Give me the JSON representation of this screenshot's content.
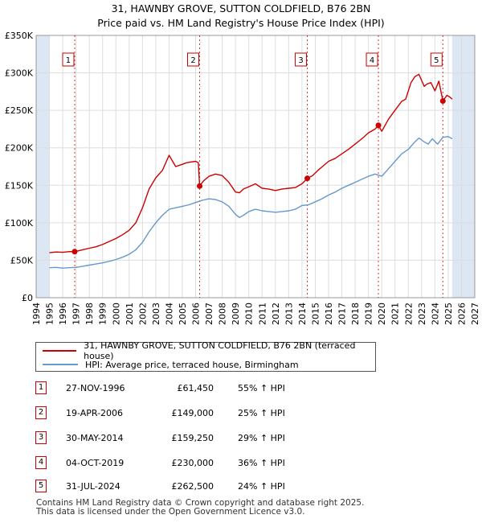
{
  "title_line1": "31, HAWNBY GROVE, SUTTON COLDFIELD, B76 2BN",
  "title_line2": "Price paid vs. HM Land Registry's House Price Index (HPI)",
  "legend": {
    "property": "31, HAWNBY GROVE, SUTTON COLDFIELD, B76 2BN (terraced house)",
    "hpi": "HPI: Average price, terraced house, Birmingham"
  },
  "sales": [
    {
      "num": "1",
      "date": "27-NOV-1996",
      "price": "£61,450",
      "hpi": "55% ↑ HPI"
    },
    {
      "num": "2",
      "date": "19-APR-2006",
      "price": "£149,000",
      "hpi": "25% ↑ HPI"
    },
    {
      "num": "3",
      "date": "30-MAY-2014",
      "price": "£159,250",
      "hpi": "29% ↑ HPI"
    },
    {
      "num": "4",
      "date": "04-OCT-2019",
      "price": "£230,000",
      "hpi": "36% ↑ HPI"
    },
    {
      "num": "5",
      "date": "31-JUL-2024",
      "price": "£262,500",
      "hpi": "24% ↑ HPI"
    }
  ],
  "footer_line1": "Contains HM Land Registry data © Crown copyright and database right 2025.",
  "footer_line2": "This data is licensed under the Open Government Licence v3.0.",
  "colors": {
    "property": "#cc0000",
    "hpi": "#6699cc",
    "shade": "#dde6f3",
    "grid": "#dddddd"
  },
  "chart_data": {
    "type": "line",
    "xlabel": "",
    "ylabel": "",
    "xlim": [
      1994,
      2027
    ],
    "ylim": [
      0,
      350000
    ],
    "x_ticks": [
      "1994",
      "1995",
      "1996",
      "1997",
      "1998",
      "1999",
      "2000",
      "2001",
      "2002",
      "2003",
      "2004",
      "2005",
      "2006",
      "2007",
      "2008",
      "2009",
      "2010",
      "2011",
      "2012",
      "2013",
      "2014",
      "2015",
      "2016",
      "2017",
      "2018",
      "2019",
      "2020",
      "2021",
      "2022",
      "2023",
      "2024",
      "2025",
      "2026",
      "2027"
    ],
    "y_ticks": [
      {
        "value": 0,
        "label": "£0"
      },
      {
        "value": 50000,
        "label": "£50K"
      },
      {
        "value": 100000,
        "label": "£100K"
      },
      {
        "value": 150000,
        "label": "£150K"
      },
      {
        "value": 200000,
        "label": "£200K"
      },
      {
        "value": 250000,
        "label": "£250K"
      },
      {
        "value": 300000,
        "label": "£300K"
      },
      {
        "value": 350000,
        "label": "£350K"
      }
    ],
    "shaded_ranges": [
      [
        1994,
        1995
      ],
      [
        2025.3,
        2027
      ]
    ],
    "sale_markers": [
      {
        "label": "1",
        "x": 1996.9,
        "y": 61450
      },
      {
        "label": "2",
        "x": 2006.3,
        "y": 149000
      },
      {
        "label": "3",
        "x": 2014.4,
        "y": 159250
      },
      {
        "label": "4",
        "x": 2019.75,
        "y": 230000
      },
      {
        "label": "5",
        "x": 2024.6,
        "y": 262500
      }
    ],
    "series": [
      {
        "name": "31, HAWNBY GROVE, SUTTON COLDFIELD, B76 2BN (terraced house)",
        "x": [
          1995,
          1995.5,
          1996,
          1996.5,
          1996.9,
          1997.5,
          1998,
          1998.5,
          1999,
          1999.5,
          2000,
          2000.5,
          2001,
          2001.5,
          2002,
          2002.5,
          2003,
          2003.5,
          2004,
          2004.5,
          2005,
          2005.3,
          2005.6,
          2006,
          2006.2,
          2006.3,
          2006.6,
          2007,
          2007.5,
          2008,
          2008.5,
          2009,
          2009.3,
          2009.6,
          2010,
          2010.5,
          2011,
          2011.5,
          2012,
          2012.5,
          2013,
          2013.5,
          2014,
          2014.4,
          2014.8,
          2015.2,
          2015.6,
          2016,
          2016.5,
          2017,
          2017.5,
          2018,
          2018.5,
          2019,
          2019.5,
          2019.75,
          2020,
          2020.5,
          2021,
          2021.5,
          2021.8,
          2022.2,
          2022.5,
          2022.8,
          2023,
          2023.2,
          2023.4,
          2023.7,
          2024,
          2024.3,
          2024.6,
          2024.9,
          2025.1,
          2025.3
        ],
        "values": [
          60000,
          61000,
          60500,
          61500,
          61450,
          64000,
          66000,
          68000,
          71000,
          75000,
          79000,
          84000,
          90000,
          100000,
          120000,
          145000,
          160000,
          170000,
          190000,
          175000,
          178000,
          180000,
          181000,
          182000,
          180000,
          149000,
          156000,
          162000,
          165000,
          163000,
          154000,
          141000,
          140000,
          145000,
          148000,
          152000,
          146000,
          145000,
          143000,
          145000,
          146000,
          147000,
          152000,
          159250,
          163000,
          170000,
          176000,
          182000,
          186000,
          192000,
          198000,
          205000,
          212000,
          220000,
          225000,
          230000,
          222000,
          238000,
          250000,
          262000,
          265000,
          287000,
          295000,
          298000,
          290000,
          282000,
          285000,
          287000,
          276000,
          289000,
          262500,
          270000,
          268000,
          265000
        ]
      },
      {
        "name": "HPI: Average price, terraced house, Birmingham",
        "x": [
          1995,
          1995.5,
          1996,
          1996.5,
          1997,
          1997.5,
          1998,
          1998.5,
          1999,
          1999.5,
          2000,
          2000.5,
          2001,
          2001.5,
          2002,
          2002.5,
          2003,
          2003.5,
          2004,
          2004.5,
          2005,
          2005.5,
          2006,
          2006.5,
          2007,
          2007.5,
          2008,
          2008.5,
          2009,
          2009.3,
          2009.6,
          2010,
          2010.5,
          2011,
          2011.5,
          2012,
          2012.5,
          2013,
          2013.5,
          2014,
          2014.5,
          2015,
          2015.5,
          2016,
          2016.5,
          2017,
          2017.5,
          2018,
          2018.5,
          2019,
          2019.5,
          2020,
          2020.5,
          2021,
          2021.5,
          2022,
          2022.5,
          2022.8,
          2023.2,
          2023.5,
          2023.8,
          2024.2,
          2024.6,
          2025,
          2025.3
        ],
        "values": [
          40000,
          40500,
          39500,
          40000,
          40500,
          42000,
          43500,
          45000,
          46500,
          48500,
          51000,
          54000,
          58000,
          64000,
          74000,
          88000,
          100000,
          110000,
          118000,
          120000,
          122000,
          124000,
          127000,
          130000,
          132000,
          131000,
          128000,
          122000,
          111000,
          107000,
          110000,
          115000,
          118000,
          116000,
          115000,
          114000,
          115000,
          116000,
          118000,
          123000,
          124000,
          128000,
          132000,
          137000,
          141000,
          146000,
          150000,
          154000,
          158000,
          162000,
          165000,
          162000,
          172000,
          182000,
          192000,
          198000,
          208000,
          213000,
          208000,
          205000,
          212000,
          205000,
          214000,
          215000,
          212000
        ]
      }
    ]
  }
}
